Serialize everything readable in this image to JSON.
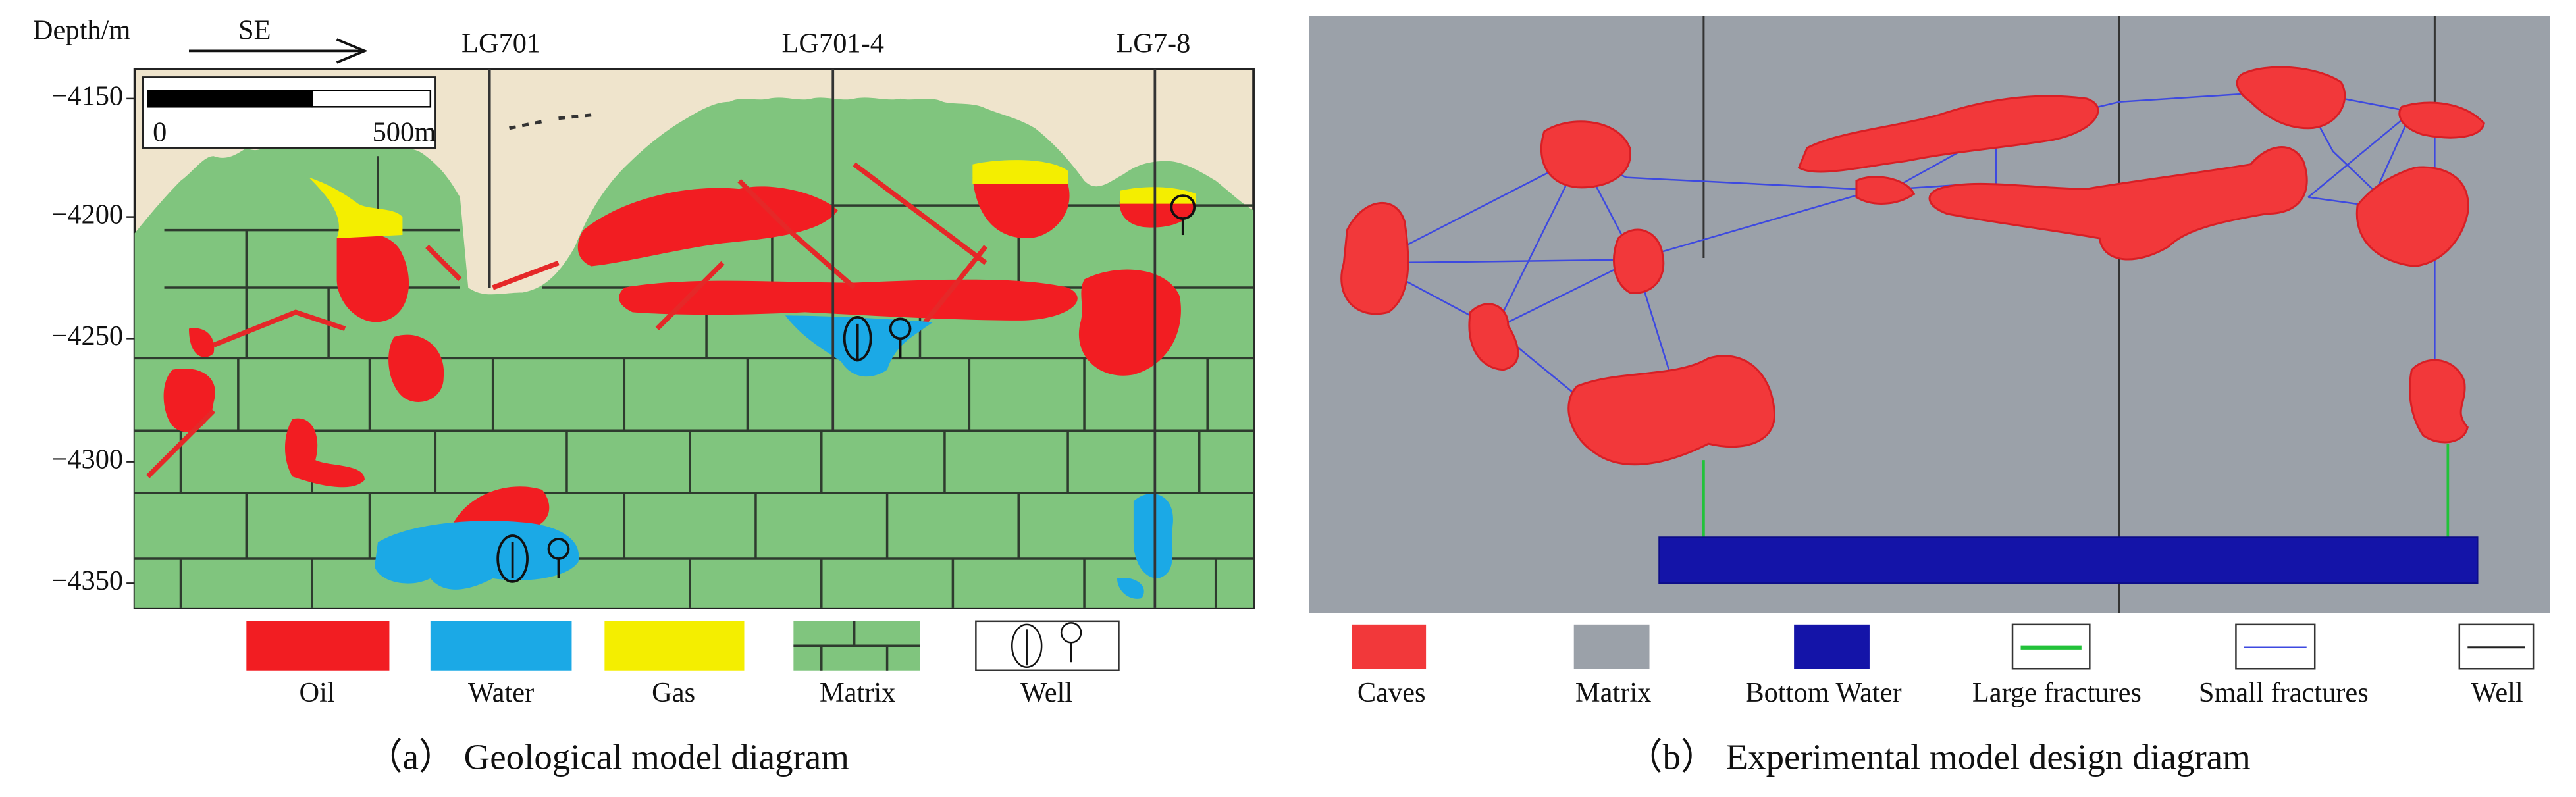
{
  "panel_a": {
    "axis_label": "Depth/m",
    "direction": "SE",
    "wells": [
      "LG701",
      "LG701-4",
      "LG7-8"
    ],
    "depth_ticks": [
      "−4150",
      "−4200",
      "−4250",
      "−4300",
      "−4350"
    ],
    "scale_bar": [
      "0",
      "500m"
    ],
    "legend": [
      "Oil",
      "Water",
      "Gas",
      "Matrix",
      "Well"
    ],
    "caption": "（a） Geological model diagram"
  },
  "panel_b": {
    "legend": [
      "Caves",
      "Matrix",
      "Bottom Water",
      "Large fractures",
      "Small fractures",
      "Well"
    ],
    "caption": "（b） Experimental model design diagram"
  }
}
